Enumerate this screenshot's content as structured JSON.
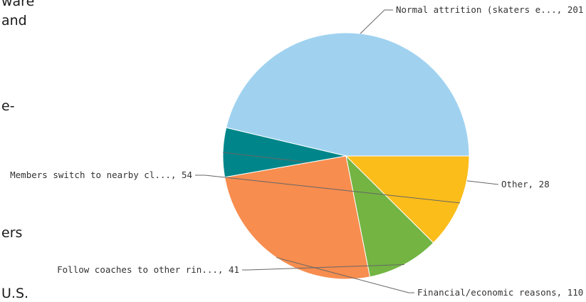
{
  "side_text": [
    "ware",
    "and",
    "e-",
    "ers",
    "U.S."
  ],
  "chart_data": {
    "type": "pie",
    "title": "",
    "slices": [
      {
        "label": "Normal attrition (skaters e...",
        "value": 201,
        "color": "#a0d2f0"
      },
      {
        "label": "Other",
        "value": 28,
        "color": "#00868a"
      },
      {
        "label": "Financial/economic reasons",
        "value": 110,
        "color": "#f78d4f"
      },
      {
        "label": "Follow coaches to other rin...",
        "value": 41,
        "color": "#73b443"
      },
      {
        "label": "Members switch to nearby cl...",
        "value": 54,
        "color": "#fbbd1a"
      }
    ],
    "start": "horizontal-right",
    "direction": "counterclockwise",
    "label_format": "{label}, {value}",
    "legend": "none"
  }
}
